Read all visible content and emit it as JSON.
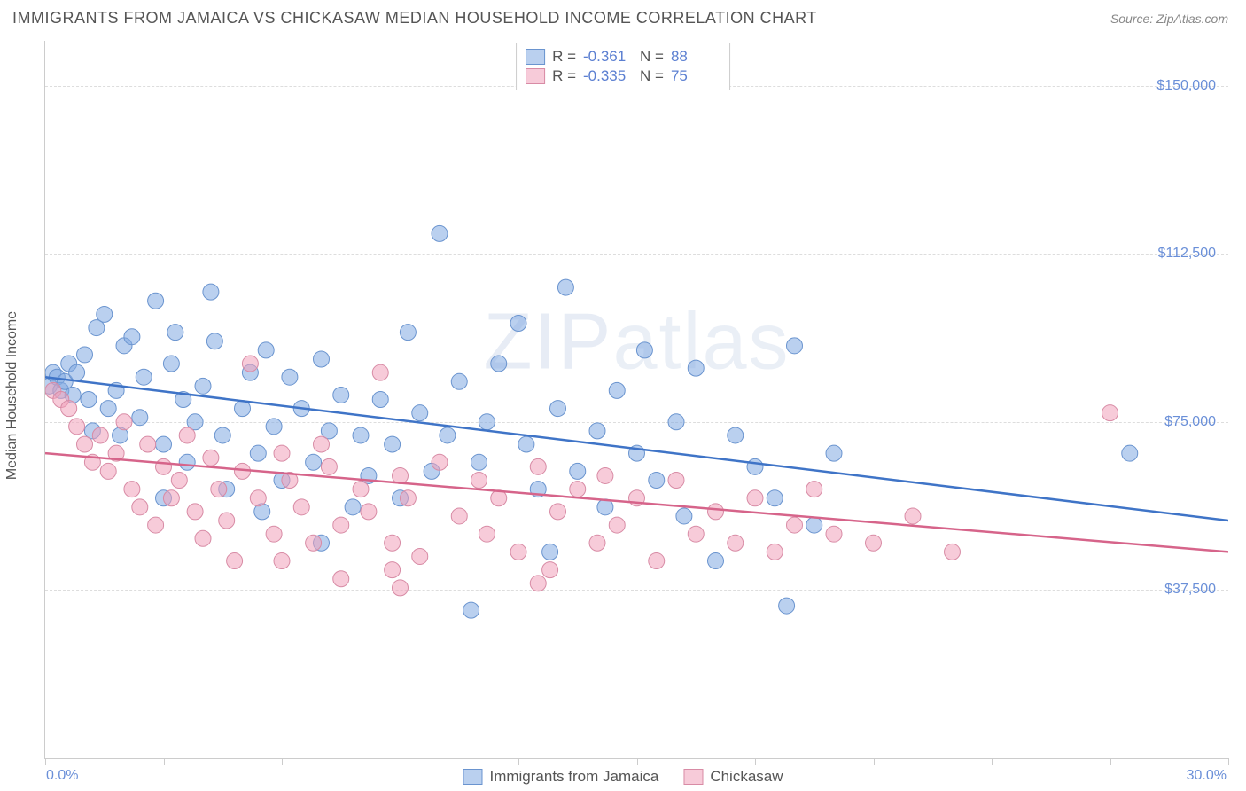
{
  "header": {
    "title": "IMMIGRANTS FROM JAMAICA VS CHICKASAW MEDIAN HOUSEHOLD INCOME CORRELATION CHART",
    "source": "Source: ZipAtlas.com"
  },
  "chart": {
    "type": "scatter",
    "watermark": "ZIPatlas",
    "ylabel": "Median Household Income",
    "xlim": [
      0,
      30
    ],
    "ylim": [
      0,
      160000
    ],
    "xtick_labels": {
      "min": "0.0%",
      "max": "30.0%"
    },
    "xtick_positions_pct": [
      0,
      10,
      20,
      30,
      40,
      50,
      60,
      70,
      80,
      90,
      100
    ],
    "ytick_labels": [
      "$37,500",
      "$75,000",
      "$112,500",
      "$150,000"
    ],
    "ytick_values": [
      37500,
      75000,
      112500,
      150000
    ],
    "grid_color": "#dddddd",
    "axis_color": "#cccccc",
    "background_color": "#ffffff",
    "label_fontsize": 16,
    "tick_color": "#6a8fd8",
    "series": [
      {
        "name": "Immigrants from Jamaica",
        "fill": "rgba(130,170,225,0.55)",
        "stroke": "#6a94cf",
        "line_color": "#3f74c7",
        "marker_radius": 9,
        "R": "-0.361",
        "N": "88",
        "trend": {
          "x1": 0,
          "y1": 85000,
          "x2": 30,
          "y2": 53000
        },
        "points": [
          [
            0.1,
            83000
          ],
          [
            0.2,
            86000
          ],
          [
            0.3,
            85000
          ],
          [
            0.4,
            82000
          ],
          [
            0.5,
            84000
          ],
          [
            0.6,
            88000
          ],
          [
            0.7,
            81000
          ],
          [
            0.8,
            86000
          ],
          [
            1.0,
            90000
          ],
          [
            1.1,
            80000
          ],
          [
            1.2,
            73000
          ],
          [
            1.3,
            96000
          ],
          [
            1.5,
            99000
          ],
          [
            1.6,
            78000
          ],
          [
            1.8,
            82000
          ],
          [
            1.9,
            72000
          ],
          [
            2.0,
            92000
          ],
          [
            2.2,
            94000
          ],
          [
            2.4,
            76000
          ],
          [
            2.5,
            85000
          ],
          [
            2.8,
            102000
          ],
          [
            3.0,
            70000
          ],
          [
            3.2,
            88000
          ],
          [
            3.3,
            95000
          ],
          [
            3.5,
            80000
          ],
          [
            3.6,
            66000
          ],
          [
            3.8,
            75000
          ],
          [
            4.0,
            83000
          ],
          [
            4.2,
            104000
          ],
          [
            4.3,
            93000
          ],
          [
            4.5,
            72000
          ],
          [
            4.6,
            60000
          ],
          [
            5.0,
            78000
          ],
          [
            5.2,
            86000
          ],
          [
            5.4,
            68000
          ],
          [
            5.6,
            91000
          ],
          [
            5.8,
            74000
          ],
          [
            6.0,
            62000
          ],
          [
            6.2,
            85000
          ],
          [
            6.5,
            78000
          ],
          [
            6.8,
            66000
          ],
          [
            7.0,
            89000
          ],
          [
            7.2,
            73000
          ],
          [
            7.5,
            81000
          ],
          [
            7.8,
            56000
          ],
          [
            8.0,
            72000
          ],
          [
            8.2,
            63000
          ],
          [
            8.5,
            80000
          ],
          [
            8.8,
            70000
          ],
          [
            9.0,
            58000
          ],
          [
            9.2,
            95000
          ],
          [
            9.5,
            77000
          ],
          [
            9.8,
            64000
          ],
          [
            10.0,
            117000
          ],
          [
            10.2,
            72000
          ],
          [
            10.5,
            84000
          ],
          [
            11.0,
            66000
          ],
          [
            11.2,
            75000
          ],
          [
            11.5,
            88000
          ],
          [
            12.0,
            97000
          ],
          [
            12.2,
            70000
          ],
          [
            12.5,
            60000
          ],
          [
            13.0,
            78000
          ],
          [
            13.2,
            105000
          ],
          [
            13.5,
            64000
          ],
          [
            14.0,
            73000
          ],
          [
            14.2,
            56000
          ],
          [
            14.5,
            82000
          ],
          [
            15.0,
            68000
          ],
          [
            15.2,
            91000
          ],
          [
            15.5,
            62000
          ],
          [
            16.0,
            75000
          ],
          [
            16.2,
            54000
          ],
          [
            16.5,
            87000
          ],
          [
            17.0,
            44000
          ],
          [
            17.5,
            72000
          ],
          [
            18.0,
            65000
          ],
          [
            18.5,
            58000
          ],
          [
            19.0,
            92000
          ],
          [
            19.5,
            52000
          ],
          [
            20.0,
            68000
          ],
          [
            18.8,
            34000
          ],
          [
            10.8,
            33000
          ],
          [
            12.8,
            46000
          ],
          [
            27.5,
            68000
          ],
          [
            5.5,
            55000
          ],
          [
            7.0,
            48000
          ],
          [
            3.0,
            58000
          ]
        ]
      },
      {
        "name": "Chickasaw",
        "fill": "rgba(240,160,185,0.55)",
        "stroke": "#d88ba5",
        "line_color": "#d6648a",
        "marker_radius": 9,
        "R": "-0.335",
        "N": "75",
        "trend": {
          "x1": 0,
          "y1": 68000,
          "x2": 30,
          "y2": 46000
        },
        "points": [
          [
            0.2,
            82000
          ],
          [
            0.4,
            80000
          ],
          [
            0.6,
            78000
          ],
          [
            0.8,
            74000
          ],
          [
            1.0,
            70000
          ],
          [
            1.2,
            66000
          ],
          [
            1.4,
            72000
          ],
          [
            1.6,
            64000
          ],
          [
            1.8,
            68000
          ],
          [
            2.0,
            75000
          ],
          [
            2.2,
            60000
          ],
          [
            2.4,
            56000
          ],
          [
            2.6,
            70000
          ],
          [
            2.8,
            52000
          ],
          [
            3.0,
            65000
          ],
          [
            3.2,
            58000
          ],
          [
            3.4,
            62000
          ],
          [
            3.6,
            72000
          ],
          [
            3.8,
            55000
          ],
          [
            4.0,
            49000
          ],
          [
            4.2,
            67000
          ],
          [
            4.4,
            60000
          ],
          [
            4.6,
            53000
          ],
          [
            5.0,
            64000
          ],
          [
            5.2,
            88000
          ],
          [
            5.4,
            58000
          ],
          [
            5.8,
            50000
          ],
          [
            6.0,
            68000
          ],
          [
            6.2,
            62000
          ],
          [
            6.5,
            56000
          ],
          [
            6.8,
            48000
          ],
          [
            7.0,
            70000
          ],
          [
            7.2,
            65000
          ],
          [
            7.5,
            52000
          ],
          [
            8.0,
            60000
          ],
          [
            8.2,
            55000
          ],
          [
            8.5,
            86000
          ],
          [
            8.8,
            48000
          ],
          [
            9.0,
            63000
          ],
          [
            9.2,
            58000
          ],
          [
            9.5,
            45000
          ],
          [
            10.0,
            66000
          ],
          [
            10.5,
            54000
          ],
          [
            11.0,
            62000
          ],
          [
            11.2,
            50000
          ],
          [
            11.5,
            58000
          ],
          [
            12.0,
            46000
          ],
          [
            12.5,
            65000
          ],
          [
            12.8,
            42000
          ],
          [
            13.0,
            55000
          ],
          [
            13.5,
            60000
          ],
          [
            14.0,
            48000
          ],
          [
            14.2,
            63000
          ],
          [
            14.5,
            52000
          ],
          [
            15.0,
            58000
          ],
          [
            15.5,
            44000
          ],
          [
            16.0,
            62000
          ],
          [
            16.5,
            50000
          ],
          [
            17.0,
            55000
          ],
          [
            17.5,
            48000
          ],
          [
            18.0,
            58000
          ],
          [
            18.5,
            46000
          ],
          [
            19.0,
            52000
          ],
          [
            19.5,
            60000
          ],
          [
            20.0,
            50000
          ],
          [
            21.0,
            48000
          ],
          [
            22.0,
            54000
          ],
          [
            23.0,
            46000
          ],
          [
            27.0,
            77000
          ],
          [
            6.0,
            44000
          ],
          [
            7.5,
            40000
          ],
          [
            9.0,
            38000
          ],
          [
            12.5,
            39000
          ],
          [
            4.8,
            44000
          ],
          [
            8.8,
            42000
          ]
        ]
      }
    ]
  },
  "legend": {
    "series1_label": "Immigrants from Jamaica",
    "series2_label": "Chickasaw"
  }
}
